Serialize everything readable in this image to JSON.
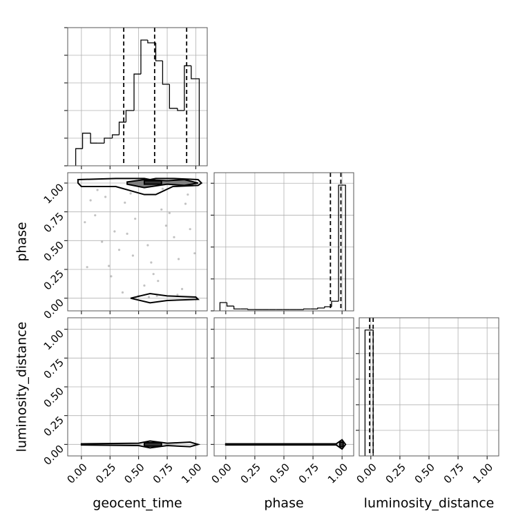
{
  "chart_data": [
    {
      "type": "histogram",
      "color": "#000000",
      "grid": true,
      "bins": [
        -0.05,
        0.01,
        0.08,
        0.14,
        0.2,
        0.27,
        0.33,
        0.39,
        0.46,
        0.52,
        0.58,
        0.65,
        0.71,
        0.77,
        0.84,
        0.9,
        0.96,
        1.03
      ],
      "values": [
        0.62,
        1.18,
        0.82,
        0.82,
        1.0,
        1.12,
        1.58,
        2.0,
        3.32,
        4.55,
        4.45,
        3.8,
        2.95,
        2.08,
        2.0,
        3.62,
        3.15
      ],
      "quantiles": [
        0.37,
        0.64,
        0.92
      ],
      "xlim": [
        -0.12,
        1.1
      ],
      "xticks": [
        0,
        0.25,
        0.5,
        0.75,
        1
      ],
      "ylim": [
        0,
        5
      ],
      "yticks": [
        0,
        1,
        2,
        3,
        4,
        5
      ]
    },
    {
      "type": "corner2d",
      "grid": true,
      "ylabel": "phase",
      "xlim": [
        -0.12,
        1.1
      ],
      "xticks": [
        0,
        0.25,
        0.5,
        0.75,
        1
      ],
      "ylim": [
        -0.11,
        1.09
      ],
      "yticks": [
        {
          "value": 0,
          "label": "0.00"
        },
        {
          "value": 0.25,
          "label": "0.25"
        },
        {
          "value": 0.5,
          "label": "0.50"
        },
        {
          "value": 0.75,
          "label": "0.75"
        },
        {
          "value": 1,
          "label": "1.00"
        }
      ],
      "points": {
        "color": "#999999",
        "x": [
          0.12,
          0.85,
          0.43,
          0.67,
          0.29,
          0.91,
          0.05,
          0.58,
          0.74,
          0.36,
          0.99,
          0.21,
          0.63,
          0.47,
          0.81,
          0.14,
          0.55,
          0.7,
          0.33,
          0.95,
          0.08,
          0.61,
          0.88,
          0.4,
          0.52,
          0.26,
          0.77,
          0.18,
          0.66,
          0.93,
          0.45,
          0.03,
          0.71,
          0.59,
          0.38,
          0.84,
          0.24,
          0.97,
          0.5,
          0.64
        ],
        "y": [
          0.72,
          0.34,
          0.91,
          0.15,
          0.58,
          0.82,
          0.27,
          0.46,
          0.63,
          0.05,
          0.39,
          0.88,
          0.21,
          0.69,
          0.53,
          0.94,
          0.11,
          0.77,
          0.42,
          0.6,
          0.85,
          0.31,
          0.08,
          0.56,
          0.97,
          0.19,
          0.74,
          0.49,
          0.02,
          0.9,
          0.37,
          0.66,
          0.95,
          0.01,
          0.83,
          0.03,
          0.28,
          0.98,
          0.02,
          0.99
        ]
      },
      "contours": [
        {
          "fill": "none",
          "x": [
            -0.03,
            0.3,
            0.55,
            0.6,
            0.65,
            0.8,
            1.02,
            1.05,
            1.02,
            0.8,
            0.65,
            0.55,
            0.3,
            0.0,
            -0.03
          ],
          "y": [
            1.03,
            1.04,
            1.04,
            1.03,
            1.04,
            1.04,
            1.03,
            1.0,
            0.98,
            0.97,
            0.9,
            0.9,
            0.97,
            0.97,
            1.0
          ]
        },
        {
          "fill": "#7f7f7f",
          "x": [
            0.4,
            0.55,
            0.75,
            0.9,
            1.02,
            0.9,
            0.75,
            0.55,
            0.4
          ],
          "y": [
            1.01,
            1.03,
            1.02,
            1.03,
            1.0,
            0.98,
            0.99,
            0.96,
            0.99
          ]
        },
        {
          "fill": "#333333",
          "x": [
            0.55,
            0.7,
            0.7,
            0.55
          ],
          "y": [
            1.02,
            1.02,
            0.99,
            0.99
          ]
        },
        {
          "fill": "none",
          "x": [
            0.43,
            0.6,
            0.75,
            1.0,
            1.02,
            0.75,
            0.6,
            0.43
          ],
          "y": [
            0.0,
            0.04,
            0.02,
            0.01,
            -0.01,
            -0.02,
            -0.04,
            0.0
          ]
        }
      ]
    },
    {
      "type": "histogram",
      "color": "#000000",
      "grid": true,
      "bins": [
        -0.05,
        0.01,
        0.07,
        0.13,
        0.19,
        0.25,
        0.31,
        0.37,
        0.43,
        0.49,
        0.55,
        0.61,
        0.67,
        0.73,
        0.79,
        0.85,
        0.91,
        0.97,
        1.03
      ],
      "values": [
        0.26,
        0.15,
        0.06,
        0.06,
        0.04,
        0.04,
        0.04,
        0.04,
        0.04,
        0.04,
        0.04,
        0.04,
        0.06,
        0.06,
        0.09,
        0.13,
        0.3,
        3.94
      ],
      "quantiles": [
        0.9,
        0.99
      ],
      "xlim": [
        -0.1,
        1.1
      ],
      "xticks": [
        0,
        0.25,
        0.5,
        0.75,
        1
      ],
      "ylim": [
        0,
        4.33
      ],
      "yticks": [
        0,
        1,
        2,
        3,
        4
      ]
    },
    {
      "type": "corner2d",
      "grid": true,
      "xlabel": "geocent_time",
      "ylabel": "luminosity_distance",
      "xlim": [
        -0.12,
        1.1
      ],
      "xticks": [
        {
          "value": 0,
          "label": "0.00"
        },
        {
          "value": 0.25,
          "label": "0.25"
        },
        {
          "value": 0.5,
          "label": "0.50"
        },
        {
          "value": 0.75,
          "label": "0.75"
        },
        {
          "value": 1,
          "label": "1.00"
        }
      ],
      "ylim": [
        -0.1,
        1.1
      ],
      "yticks": [
        {
          "value": 0,
          "label": "0.00"
        },
        {
          "value": 0.25,
          "label": "0.25"
        },
        {
          "value": 0.5,
          "label": "0.50"
        },
        {
          "value": 0.75,
          "label": "0.75"
        },
        {
          "value": 1,
          "label": "1.00"
        }
      ],
      "contours": [
        {
          "fill": "none",
          "x": [
            0,
            0.5,
            0.6,
            0.75,
            0.95,
            1.02,
            0.95,
            0.75,
            0.6,
            0.5,
            0
          ],
          "y": [
            0.005,
            0.01,
            0.03,
            0.01,
            0.02,
            0,
            -0.02,
            -0.01,
            -0.03,
            -0.01,
            -0.005
          ]
        },
        {
          "fill": "#333333",
          "x": [
            0.55,
            0.7,
            0.7,
            0.55
          ],
          "y": [
            0.015,
            0.015,
            -0.015,
            -0.015
          ]
        }
      ]
    },
    {
      "type": "corner2d",
      "grid": true,
      "xlabel": "phase",
      "xlim": [
        -0.1,
        1.1
      ],
      "xticks": [
        {
          "value": 0,
          "label": "0.00"
        },
        {
          "value": 0.25,
          "label": "0.25"
        },
        {
          "value": 0.5,
          "label": "0.50"
        },
        {
          "value": 0.75,
          "label": "0.75"
        },
        {
          "value": 1,
          "label": "1.00"
        }
      ],
      "ylim": [
        -0.1,
        1.1
      ],
      "yticks": [
        0,
        0.25,
        0.5,
        0.75,
        1
      ],
      "contours": [
        {
          "fill": "none",
          "x": [
            0,
            0.95,
            1.0,
            1.03,
            1.0,
            0.95,
            0
          ],
          "y": [
            0.005,
            0.005,
            0.04,
            0,
            -0.04,
            -0.005,
            -0.005
          ]
        },
        {
          "fill": "#333333",
          "x": [
            0.98,
            1.01,
            1.01,
            0.98
          ],
          "y": [
            0.02,
            0.02,
            -0.02,
            -0.02
          ]
        }
      ]
    },
    {
      "type": "histogram",
      "color": "#000000",
      "grid": true,
      "xlabel": "luminosity_distance",
      "bins": [
        -0.05,
        0.02
      ],
      "values": [
        4.92
      ],
      "quantiles": [
        -0.01,
        0.02
      ],
      "xlim": [
        -0.1,
        1.1
      ],
      "xticks": [
        {
          "value": 0,
          "label": "0.00"
        },
        {
          "value": 0.25,
          "label": "0.25"
        },
        {
          "value": 0.5,
          "label": "0.50"
        },
        {
          "value": 0.75,
          "label": "0.75"
        },
        {
          "value": 1,
          "label": "1.00"
        }
      ],
      "ylim": [
        0,
        5.4
      ],
      "yticks": [
        1,
        2,
        3,
        4,
        5
      ]
    }
  ]
}
